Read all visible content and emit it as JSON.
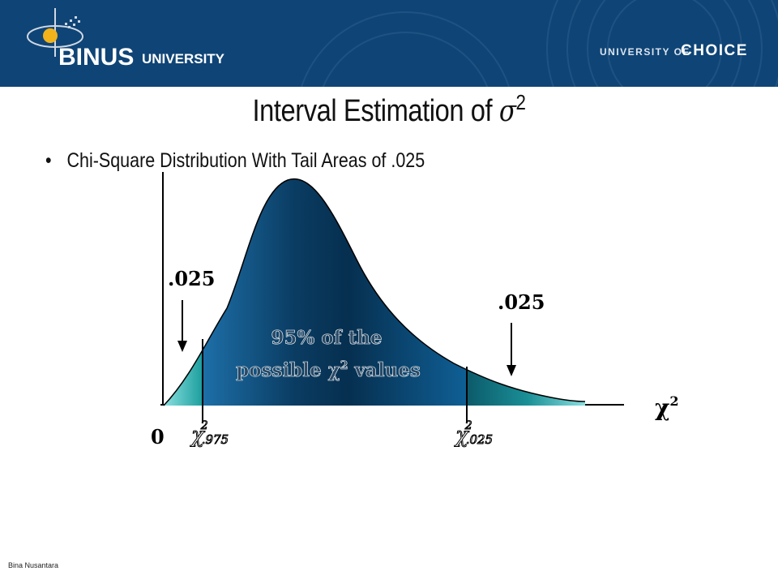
{
  "header": {
    "logo_text": "BINUS UNIVERSITY",
    "logo_word1": "BINUS",
    "logo_word2": "UNIVERSITY",
    "tagline_part1": "UNIVERSITY OF",
    "tagline_part2": "CHOICE"
  },
  "slide": {
    "title_text": "Interval Estimation of",
    "title_symbol": "σ",
    "title_exponent": "2",
    "bullet": "Chi-Square Distribution With Tail Areas of .025"
  },
  "diagram": {
    "left_tail_label": ".025",
    "right_tail_label": ".025",
    "center_line1": "95% of the",
    "center_line2_prefix": "possible ",
    "center_chi": "χ",
    "center_exp": "2",
    "center_line2_suffix": " values",
    "axis_chi": "χ",
    "axis_exp": "2",
    "origin_label": "0",
    "crit_left_symbol": "χ",
    "crit_left_exp": "2",
    "crit_left_sub": ".975",
    "crit_right_symbol": "χ",
    "crit_right_exp": "2",
    "crit_right_sub": ".025"
  },
  "footer": {
    "text": "Bina Nusantara"
  },
  "colors": {
    "header_bg": "#0f4476",
    "curve_fill_dark": "#06304f",
    "curve_fill_mid": "#0f5f95",
    "tail_fill": "#1aa8a8",
    "logo_gold": "#f2b21a"
  }
}
